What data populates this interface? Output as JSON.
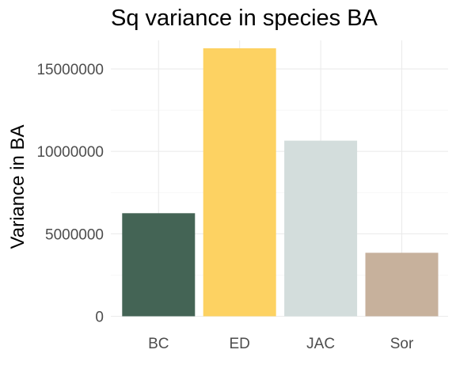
{
  "chart_data": {
    "type": "bar",
    "title": "Sq variance in species BA",
    "xlabel": "",
    "ylabel": "Variance in BA",
    "categories": [
      "BC",
      "ED",
      "JAC",
      "Sor"
    ],
    "values": [
      6250000,
      16250000,
      10650000,
      3850000
    ],
    "colors": [
      "#446455",
      "#FDD262",
      "#D3DDDC",
      "#C7B19C"
    ],
    "ylim": [
      0,
      16250000
    ],
    "yticks": [
      0,
      5000000,
      10000000,
      15000000
    ],
    "ytick_labels": [
      "0",
      "5000000",
      "10000000",
      "15000000"
    ],
    "grid": true,
    "legend": "none"
  }
}
